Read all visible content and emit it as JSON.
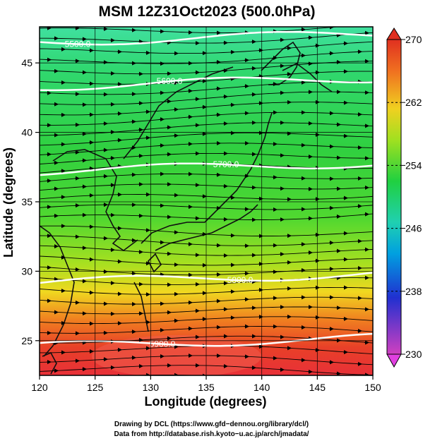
{
  "title": "MSM 12Z31Oct2023 (500.0hPa)",
  "xlabel": "Longitude (degrees)",
  "ylabel": "Latitude  (degrees)",
  "x_ticks": [
    "120",
    "125",
    "130",
    "135",
    "140",
    "145",
    "150"
  ],
  "y_ticks": [
    "25",
    "30",
    "35",
    "40",
    "45"
  ],
  "colorbar": {
    "ticks": [
      "270",
      "262",
      "254",
      "246",
      "238",
      "230"
    ],
    "range": [
      230,
      270
    ],
    "colors": [
      "#d040c0",
      "#2030d0",
      "#00a0e0",
      "#20d0b0",
      "#20d040",
      "#a0e020",
      "#f0d020",
      "#f07020",
      "#e03020"
    ]
  },
  "contours": [
    {
      "label": "5500.0",
      "lat": 46.5
    },
    {
      "label": "5600.0",
      "lat": 43.3
    },
    {
      "label": "5700.0",
      "lat": 37.2
    },
    {
      "label": "5800.0",
      "lat": 29.2
    },
    {
      "label": "5900.0",
      "lat": 24.6
    }
  ],
  "footer": {
    "line1": "Drawing by DCL (https://www.gfd−dennou.org/library/dcl/)",
    "line2": "Data from http://database.rish.kyoto−u.ac.jp/arch/jmadata/"
  },
  "chart_data": {
    "type": "heatmap",
    "variable": "temperature",
    "xlim": [
      120,
      150
    ],
    "ylim": [
      22.5,
      47.6
    ],
    "colorbar_range": [
      230,
      270
    ],
    "contour_levels": [
      5500,
      5600,
      5700,
      5800,
      5900
    ],
    "field_summary": [
      {
        "lat": 47,
        "value": 247
      },
      {
        "lat": 44,
        "value": 251
      },
      {
        "lat": 40,
        "value": 254
      },
      {
        "lat": 35,
        "value": 256
      },
      {
        "lat": 31,
        "value": 258
      },
      {
        "lat": 28,
        "value": 262
      },
      {
        "lat": 25,
        "value": 266
      },
      {
        "lat": 23,
        "value": 268
      }
    ]
  }
}
